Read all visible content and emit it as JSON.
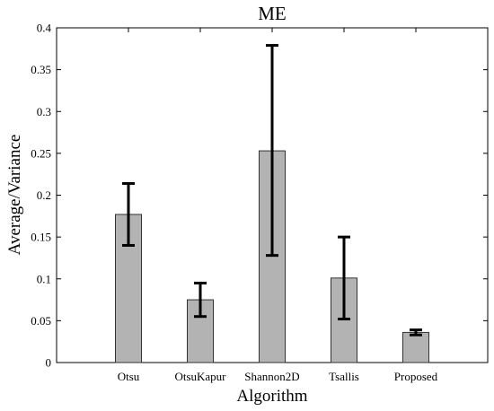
{
  "chart_data": {
    "type": "bar",
    "title": "ME",
    "xlabel": "Algorithm",
    "ylabel": "Average/Variance",
    "categories": [
      "Otsu",
      "OtsuKapur",
      "Shannon2D",
      "Tsallis",
      "Proposed"
    ],
    "values": [
      0.177,
      0.075,
      0.253,
      0.101,
      0.036
    ],
    "error_low": [
      0.14,
      0.055,
      0.128,
      0.052,
      0.033
    ],
    "error_high": [
      0.214,
      0.095,
      0.379,
      0.15,
      0.039
    ],
    "ylim": [
      0,
      0.4
    ],
    "yticks": [
      "0",
      "0.05",
      "0.1",
      "0.15",
      "0.2",
      "0.25",
      "0.3",
      "0.35",
      "0.4"
    ],
    "bar_color": "#b3b3b3",
    "grid": false
  }
}
